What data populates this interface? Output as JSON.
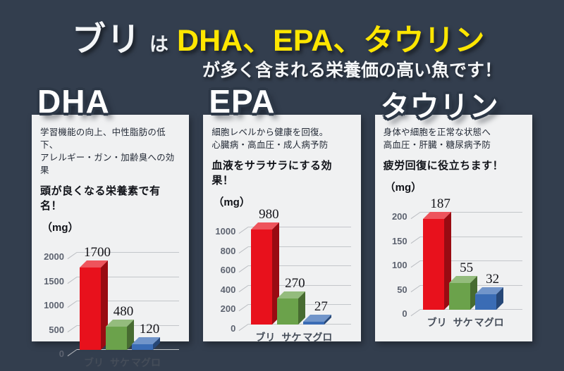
{
  "colors": {
    "background": "#333e4e",
    "panel": "#f0f1f2",
    "accent_yellow": "#ffe600",
    "bri_red": "#e8111c",
    "sake_green": "#6ba24b",
    "maguro_blue": "#3a6cb5"
  },
  "title": {
    "subject": "ブリ",
    "particle": "は",
    "nutrients": "DHA、EPA、タウリン",
    "subtitle": "が多く含まれる栄養価の高い魚です！"
  },
  "panels": [
    {
      "heading": "DHA",
      "description_lines": [
        "学習機能の向上、中性脂肪の低下、",
        "アレルギー・ガン・加齢臭への効果"
      ],
      "tagline": "頭が良くなる栄養素で有名！",
      "unit_label": "（mg）"
    },
    {
      "heading": "EPA",
      "description_lines": [
        "細胞レベルから健康を回復。",
        "心臓病・高血圧・成人病予防"
      ],
      "tagline": "血液をサラサラにする効果！",
      "unit_label": "（mg）"
    },
    {
      "heading": "タウリン",
      "description_lines": [
        "身体や細胞を正常な状態へ",
        "高血圧・肝臓・糖尿病予防"
      ],
      "tagline": "疲労回復に役立ちます！",
      "unit_label": "（mg）"
    }
  ],
  "chart_data": [
    {
      "type": "bar",
      "title": "DHA",
      "categories": [
        "ブリ",
        "サケ",
        "マグロ"
      ],
      "values": [
        1700,
        480,
        120
      ],
      "ylabel": "（mg）",
      "xlabel": "",
      "ylim": [
        0,
        2000
      ],
      "ytick_step": 500,
      "bar_colors": [
        "#e8111c",
        "#6ba24b",
        "#3a6cb5"
      ],
      "grid": true,
      "legend": false
    },
    {
      "type": "bar",
      "title": "EPA",
      "categories": [
        "ブリ",
        "サケ",
        "マグロ"
      ],
      "values": [
        980,
        270,
        27
      ],
      "ylabel": "（mg）",
      "xlabel": "",
      "ylim": [
        0,
        1000
      ],
      "ytick_step": 200,
      "bar_colors": [
        "#e8111c",
        "#6ba24b",
        "#3a6cb5"
      ],
      "grid": true,
      "legend": false
    },
    {
      "type": "bar",
      "title": "タウリン",
      "categories": [
        "ブリ",
        "サケ",
        "マグロ"
      ],
      "values": [
        187,
        55,
        32
      ],
      "ylabel": "（mg）",
      "xlabel": "",
      "ylim": [
        0,
        200
      ],
      "ytick_step": 50,
      "bar_colors": [
        "#e8111c",
        "#6ba24b",
        "#3a6cb5"
      ],
      "grid": true,
      "legend": false
    }
  ]
}
